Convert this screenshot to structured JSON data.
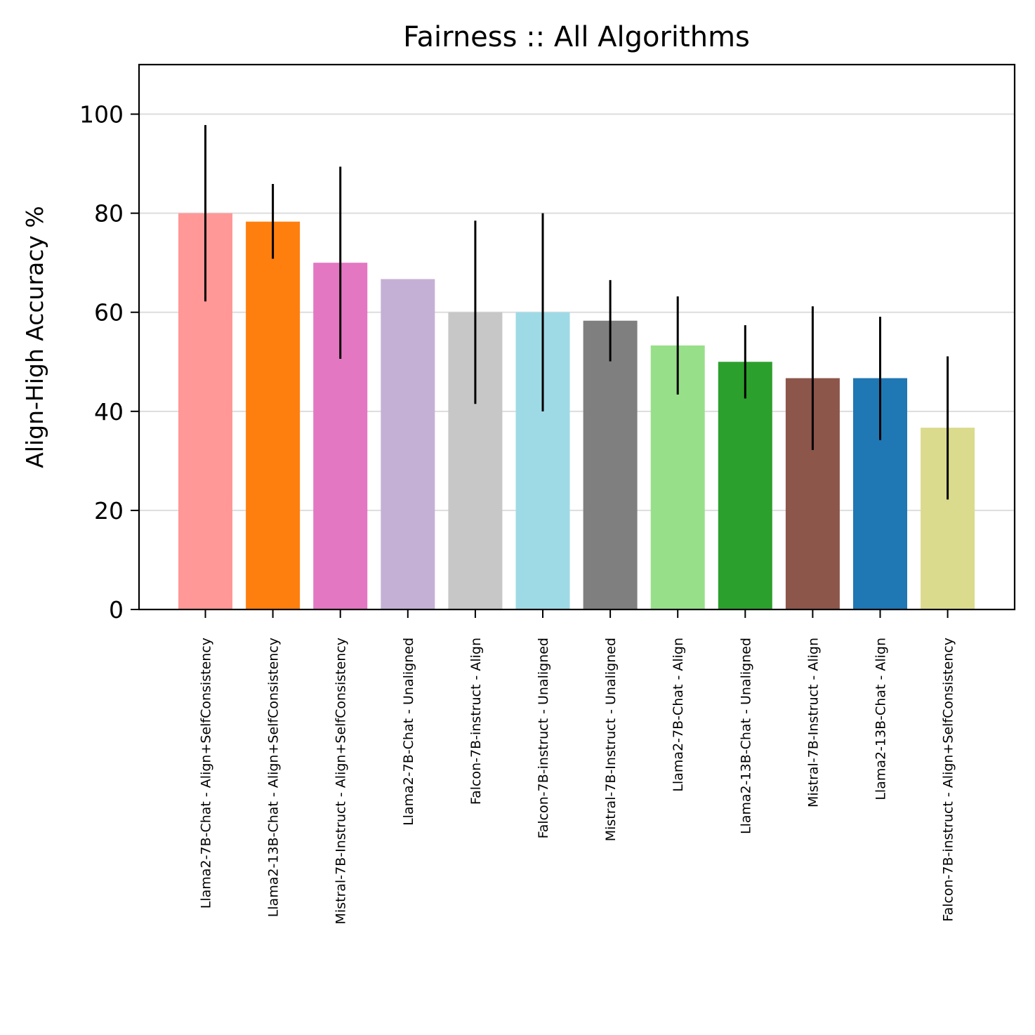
{
  "chart_data": {
    "type": "bar",
    "title": "Fairness :: All Algorithms",
    "xlabel": "",
    "ylabel": "Align-High Accuracy %",
    "ylim": [
      0,
      110
    ],
    "yticks": [
      0,
      20,
      40,
      60,
      80,
      100
    ],
    "grid": "horizontal",
    "categories": [
      "Llama2-7B-Chat - Align+SelfConsistency",
      "Llama2-13B-Chat - Align+SelfConsistency",
      "Mistral-7B-Instruct - Align+SelfConsistency",
      "Llama2-7B-Chat - Unaligned",
      "Falcon-7B-instruct - Align",
      "Falcon-7B-instruct - Unaligned",
      "Mistral-7B-Instruct - Unaligned",
      "Llama2-7B-Chat - Align",
      "Llama2-13B-Chat - Unaligned",
      "Mistral-7B-Instruct - Align",
      "Llama2-13B-Chat - Align",
      "Falcon-7B-instruct - Align+SelfConsistency"
    ],
    "values": [
      80.0,
      78.3,
      70.0,
      66.7,
      60.0,
      60.0,
      58.3,
      53.3,
      50.0,
      46.7,
      46.7,
      36.7
    ],
    "error_low": [
      62.2,
      70.8,
      50.6,
      null,
      41.5,
      40.0,
      50.1,
      43.4,
      42.6,
      32.2,
      34.2,
      22.2
    ],
    "error_high": [
      97.8,
      85.9,
      89.4,
      null,
      78.5,
      80.0,
      66.5,
      63.2,
      57.4,
      61.2,
      59.1,
      51.1
    ],
    "colors": [
      "#ff9896",
      "#ff7f0e",
      "#e377c2",
      "#c5b0d5",
      "#c7c7c7",
      "#9edae5",
      "#7f7f7f",
      "#98df8a",
      "#2ca02c",
      "#8c564b",
      "#1f77b4",
      "#dbdb8d"
    ]
  }
}
